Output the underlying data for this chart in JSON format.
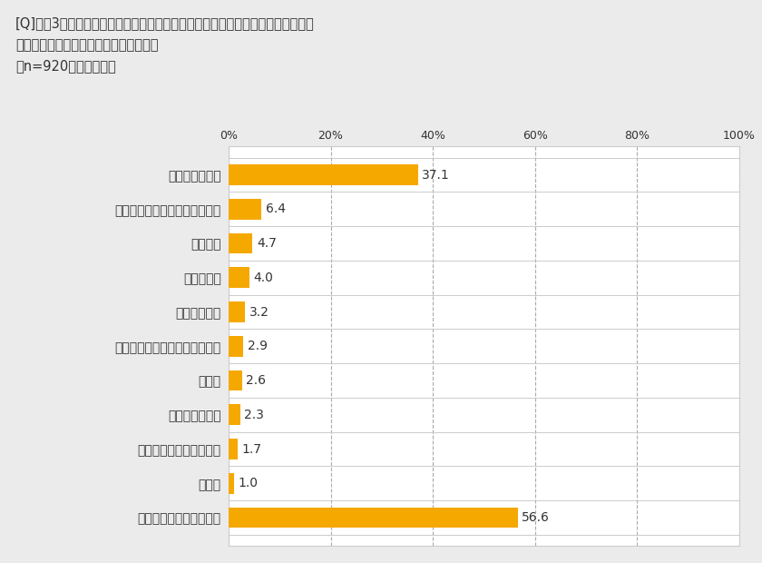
{
  "title_lines": [
    "[Q]この3年間で、あなたご自身、もしくは同居のご家族がかかったことがある、",
    "ウイルス性の感染症をお選びください。",
    "（n=920、複数回答）"
  ],
  "categories": [
    "インフルエンザ",
    "ノロウイルス感染症（胃腸炎）",
    "手足口病",
    "水ぼうそう",
    "おたふく風邪",
    "ロタウイルス感染症（胃腸炎）",
    "食中毒",
    "ヘルパンギーナ",
    "咍頭結膜熱（プール熱）",
    "その他",
    "いずれもかからなかった"
  ],
  "values": [
    37.1,
    6.4,
    4.7,
    4.0,
    3.2,
    2.9,
    2.6,
    2.3,
    1.7,
    1.0,
    56.6
  ],
  "bar_color": "#F5A800",
  "background_color": "#EBEBEB",
  "plot_bg_color": "#FFFFFF",
  "xlim": [
    0,
    100
  ],
  "xticks": [
    0,
    20,
    40,
    60,
    80,
    100
  ],
  "xticklabels": [
    "0%",
    "20%",
    "40%",
    "60%",
    "80%",
    "100%"
  ],
  "grid_color": "#AAAAAA",
  "separator_color": "#CCCCCC",
  "title_fontsize": 10.5,
  "label_fontsize": 10,
  "value_fontsize": 10,
  "tick_fontsize": 9
}
